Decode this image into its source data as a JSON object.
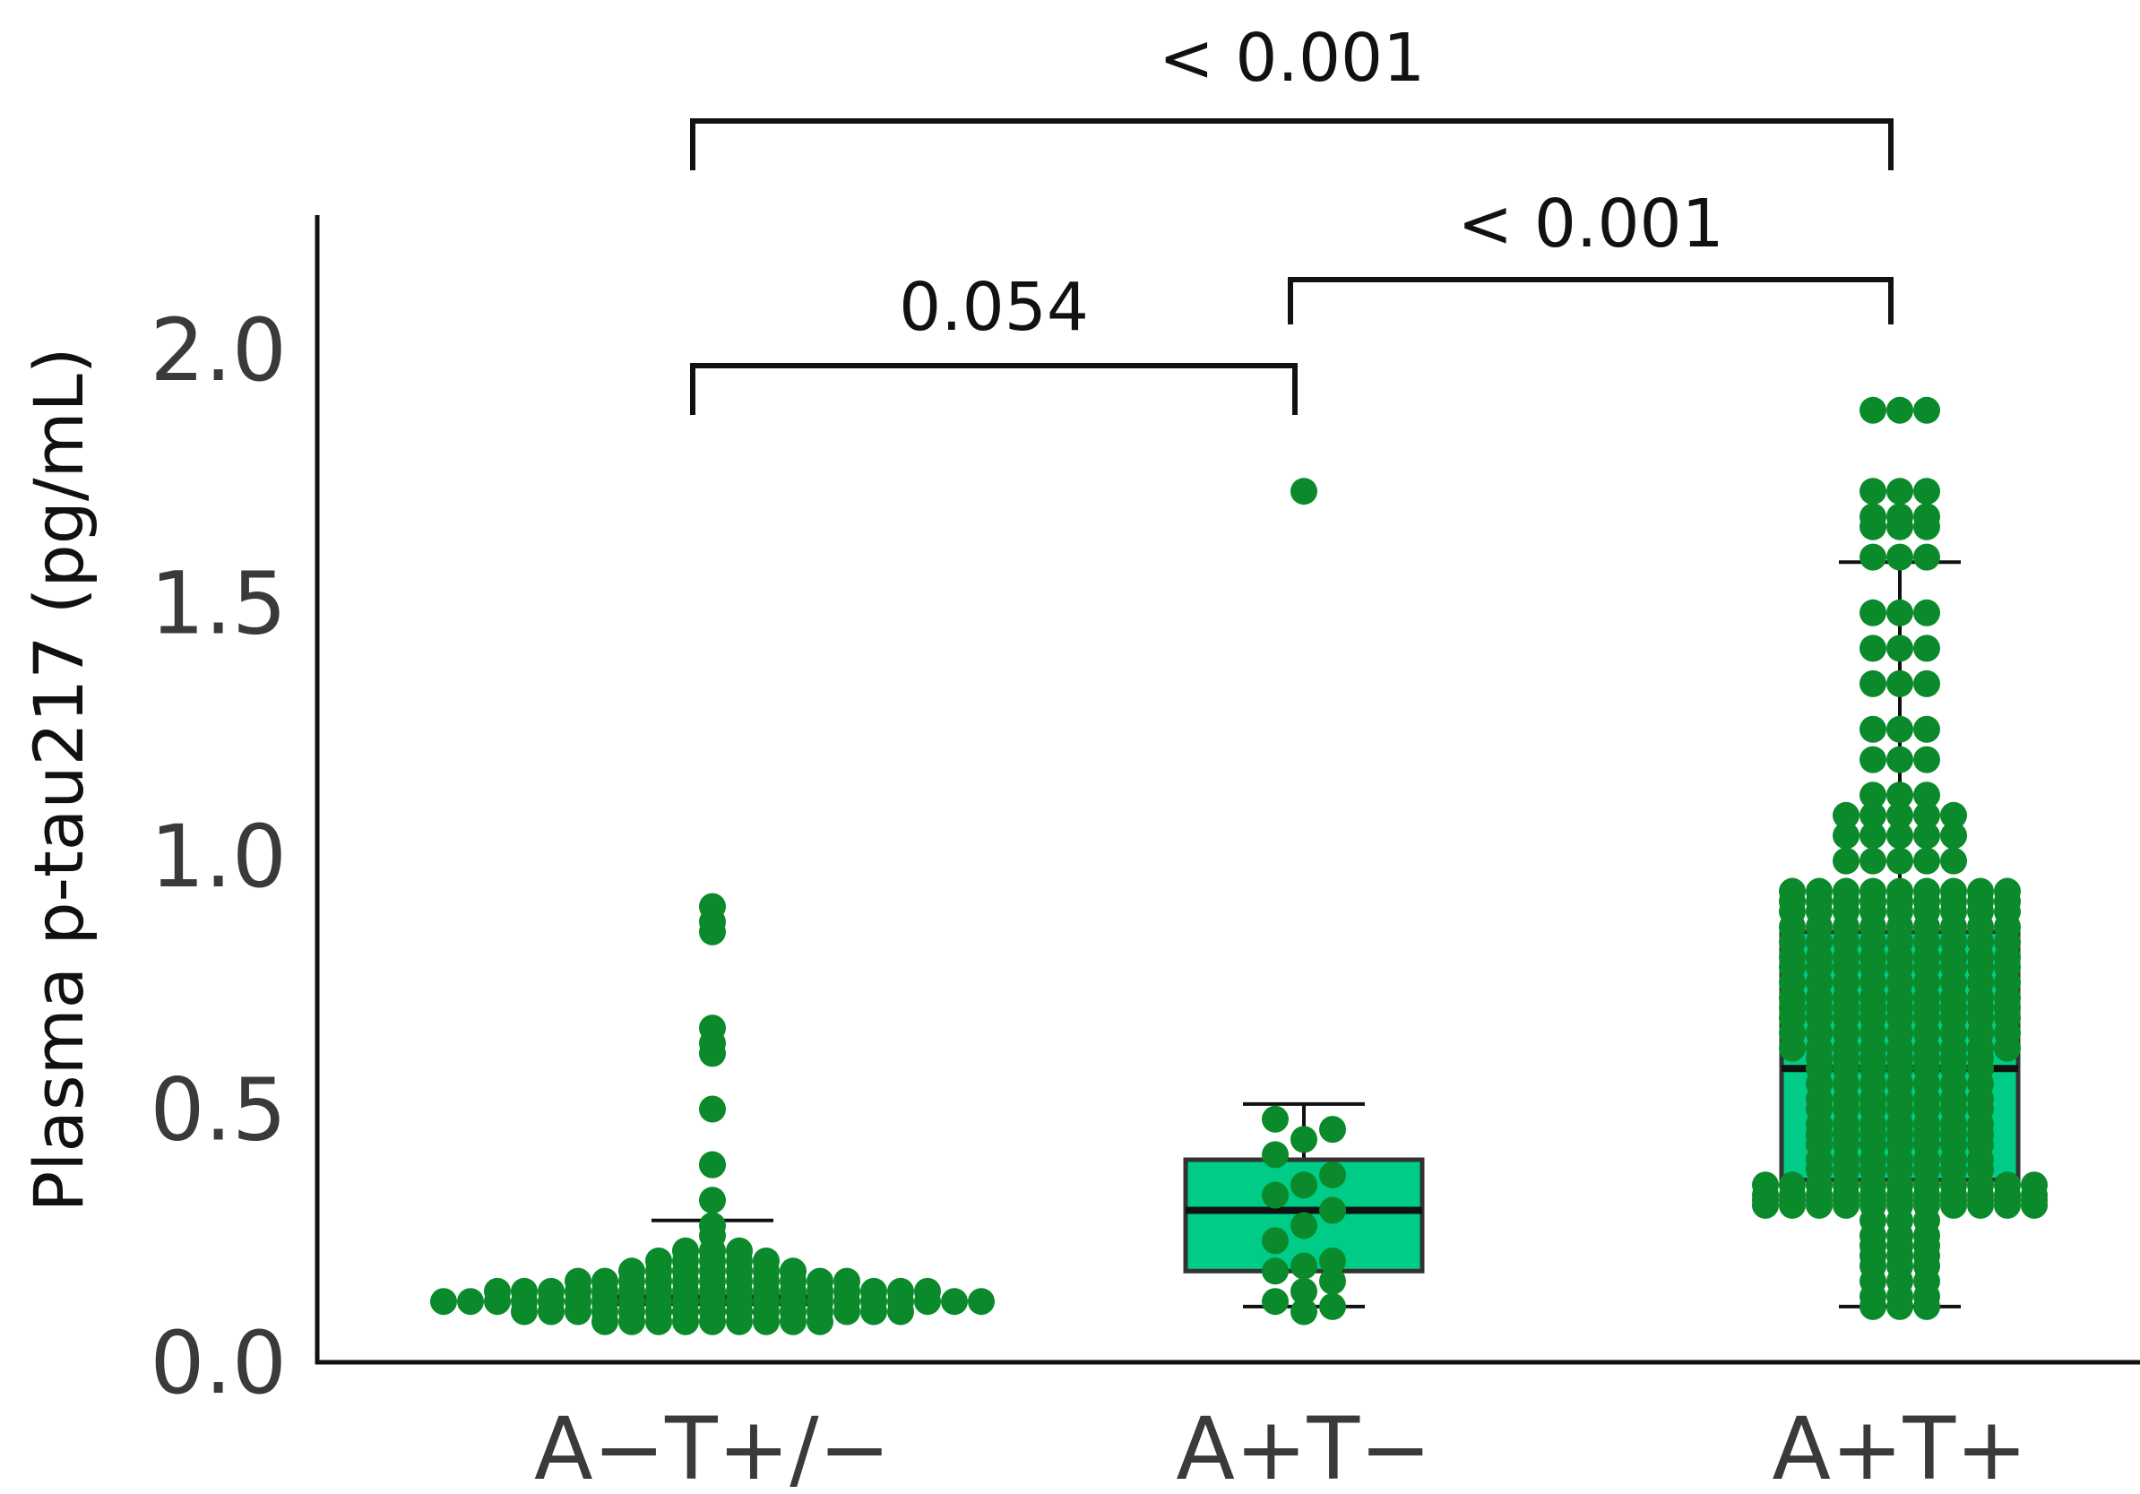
{
  "chart_data": {
    "type": "box",
    "title": "",
    "xlabel": "",
    "ylabel": "Plasma p-tau217 (pg/mL)",
    "ylim": [
      0,
      2.25
    ],
    "yticks": [
      0.0,
      0.5,
      1.0,
      1.5,
      2.0
    ],
    "ytick_labels": [
      "0.0",
      "0.5",
      "1.0",
      "1.5",
      "2.0"
    ],
    "grid": false,
    "legend": "none",
    "colors": {
      "box_fill": "#00cc88",
      "point": "#0a8a2a",
      "line": "#111111"
    },
    "categories": [
      "A−T+/−",
      "A+T−",
      "A+T+"
    ],
    "boxes": [
      {
        "name": "A−T+/−",
        "whisker_low": 0.1,
        "q1": 0.115,
        "median": 0.12,
        "q3": 0.13,
        "whisker_high": 0.28,
        "points": [
          0.9,
          0.87,
          0.85,
          0.66,
          0.63,
          0.61,
          0.5,
          0.39,
          0.39,
          0.32,
          0.27,
          0.25
        ]
      },
      {
        "name": "A+T−",
        "whisker_low": 0.11,
        "q1": 0.18,
        "median": 0.3,
        "q3": 0.4,
        "whisker_high": 0.51,
        "points": [
          1.72,
          0.48,
          0.46,
          0.44,
          0.41,
          0.37,
          0.35,
          0.33,
          0.3,
          0.27,
          0.24,
          0.2,
          0.19,
          0.18,
          0.16,
          0.14,
          0.12,
          0.11,
          0.1
        ]
      },
      {
        "name": "A+T+",
        "whisker_low": 0.11,
        "q1": 0.36,
        "median": 0.58,
        "q3": 0.85,
        "whisker_high": 1.58,
        "points": [
          1.88,
          1.72,
          1.67,
          1.65,
          1.59,
          1.48,
          1.41,
          1.34,
          1.25,
          1.19,
          1.12,
          1.08,
          1.04,
          0.99,
          0.93,
          0.91,
          0.89,
          0.86,
          0.83,
          0.8,
          0.78,
          0.75,
          0.72,
          0.7,
          0.68,
          0.65,
          0.62,
          0.6,
          0.58,
          0.55,
          0.52,
          0.5,
          0.47,
          0.45,
          0.43,
          0.4,
          0.38,
          0.35,
          0.33,
          0.32,
          0.31,
          0.28,
          0.25,
          0.23,
          0.21,
          0.19,
          0.16,
          0.13,
          0.11
        ]
      }
    ],
    "comparisons": [
      {
        "from": 0,
        "to": 2,
        "label": "< 0.001"
      },
      {
        "from": 1,
        "to": 2,
        "label": "< 0.001"
      },
      {
        "from": 0,
        "to": 1,
        "label": "0.054"
      }
    ]
  }
}
